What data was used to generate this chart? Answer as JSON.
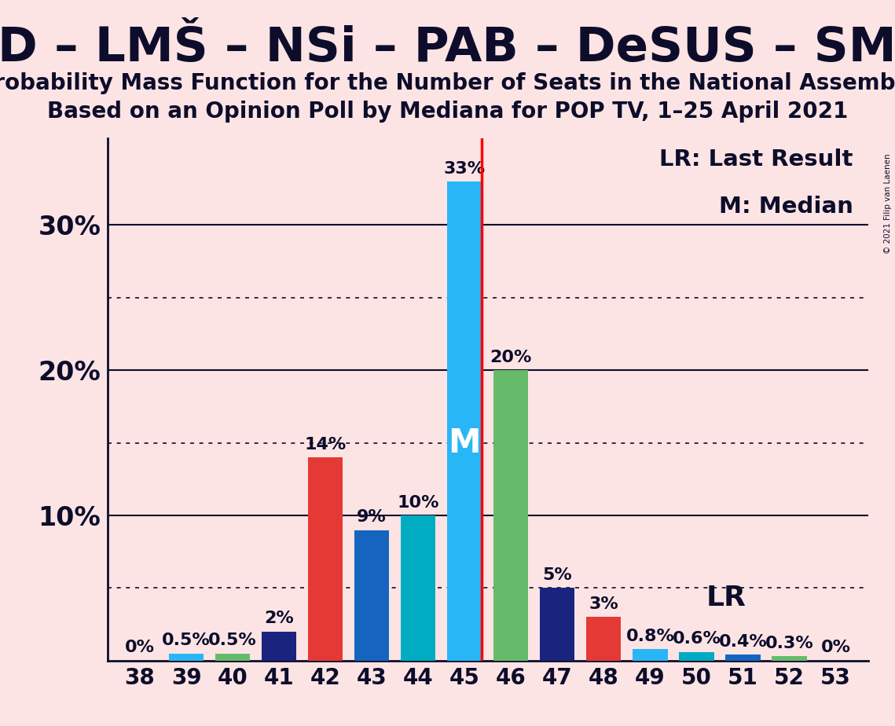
{
  "title": "SD – LMŠ – NSi – PAB – DeSUS – SMC",
  "subtitle1": "Probability Mass Function for the Number of Seats in the National Assembly",
  "subtitle2": "Based on an Opinion Poll by Mediana for POP TV, 1–25 April 2021",
  "copyright": "© 2021 Filip van Laenen",
  "background_color": "#fce4e4",
  "seats": [
    38,
    39,
    40,
    41,
    42,
    43,
    44,
    45,
    46,
    47,
    48,
    49,
    50,
    51,
    52,
    53
  ],
  "probabilities": [
    0.0,
    0.5,
    0.5,
    2.0,
    14.0,
    9.0,
    10.0,
    33.0,
    20.0,
    5.0,
    3.0,
    0.8,
    0.6,
    0.4,
    0.3,
    0.0
  ],
  "bar_colors": [
    "#29b6f6",
    "#29b6f6",
    "#66bb6a",
    "#1a237e",
    "#e53935",
    "#1565c0",
    "#00acc1",
    "#29b6f6",
    "#66bb6a",
    "#1a237e",
    "#e53935",
    "#29b6f6",
    "#00acc1",
    "#1565c0",
    "#66bb6a",
    "#66bb6a"
  ],
  "bar_labels": [
    "0%",
    "0.5%",
    "0.5%",
    "2%",
    "14%",
    "9%",
    "10%",
    "33%",
    "20%",
    "5%",
    "3%",
    "0.8%",
    "0.6%",
    "0.4%",
    "0.3%",
    "0%"
  ],
  "median_seat": 45,
  "lr_seat": 49,
  "ylim_max": 36,
  "solid_lines": [
    10,
    20,
    30
  ],
  "dotted_lines": [
    5,
    15,
    25
  ],
  "ytick_positions": [
    10,
    20,
    30
  ],
  "ytick_labels": [
    "10%",
    "20%",
    "30%"
  ],
  "axis_color": "#0d0d2b",
  "bar_width": 0.75
}
